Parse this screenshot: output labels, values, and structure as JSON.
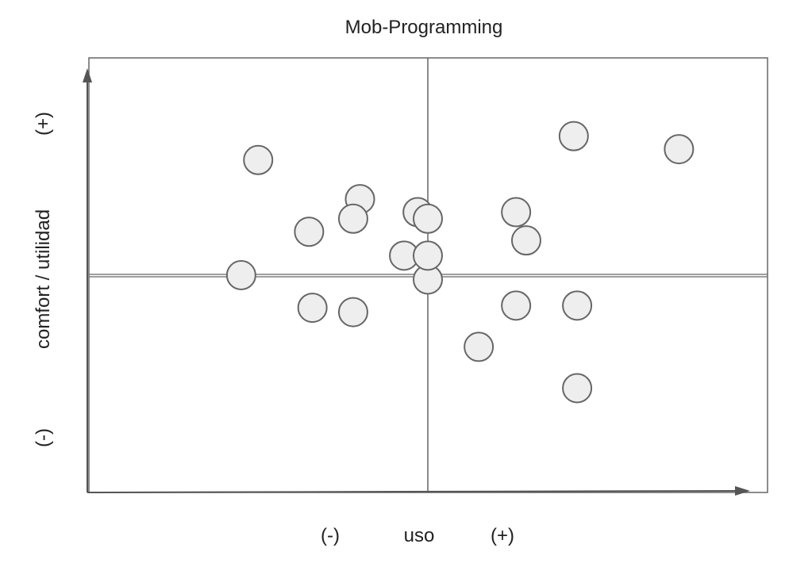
{
  "chart_data": {
    "type": "scatter",
    "title": "Mob-Programming",
    "xlabel": "uso",
    "ylabel": "comfort / utilidad",
    "x_tick_labels": [
      "(-)",
      "(+)"
    ],
    "y_tick_labels": [
      "(-)",
      "(+)"
    ],
    "xlim": [
      -1,
      1
    ],
    "ylim": [
      -1,
      1
    ],
    "grid": "quadrants",
    "point_color": "#eeeeee",
    "point_stroke": "#666666",
    "points": [
      {
        "x": -0.5,
        "y": 0.53
      },
      {
        "x": -0.2,
        "y": 0.35
      },
      {
        "x": -0.22,
        "y": 0.26
      },
      {
        "x": -0.35,
        "y": 0.2
      },
      {
        "x": -0.55,
        "y": 0.0
      },
      {
        "x": -0.34,
        "y": -0.15
      },
      {
        "x": -0.22,
        "y": -0.17
      },
      {
        "x": -0.03,
        "y": 0.29
      },
      {
        "x": 0.0,
        "y": 0.26
      },
      {
        "x": 0.0,
        "y": -0.02
      },
      {
        "x": -0.07,
        "y": 0.09
      },
      {
        "x": 0.0,
        "y": 0.09
      },
      {
        "x": 0.26,
        "y": 0.29
      },
      {
        "x": 0.29,
        "y": 0.16
      },
      {
        "x": 0.43,
        "y": 0.64
      },
      {
        "x": 0.74,
        "y": 0.58
      },
      {
        "x": 0.26,
        "y": -0.14
      },
      {
        "x": 0.44,
        "y": -0.14
      },
      {
        "x": 0.15,
        "y": -0.33
      },
      {
        "x": 0.44,
        "y": -0.52
      }
    ]
  }
}
